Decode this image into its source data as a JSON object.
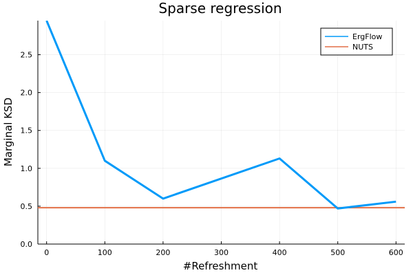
{
  "chart_data": {
    "type": "line",
    "title": "Sparse regression",
    "xlabel": "#Refreshment",
    "ylabel": "Marginal KSD",
    "xlim": [
      -15,
      615
    ],
    "ylim": [
      0,
      2.95
    ],
    "xticks": [
      0,
      100,
      200,
      300,
      400,
      500,
      600
    ],
    "xtick_labels": [
      "0",
      "100",
      "200",
      "300",
      "400",
      "500",
      "600"
    ],
    "yticks": [
      0,
      0.5,
      1,
      1.5,
      2,
      2.5
    ],
    "ytick_labels": [
      "0.0",
      "0.5",
      "1.0",
      "1.5",
      "2.0",
      "2.5"
    ],
    "grid": true,
    "legend_position": "top-right",
    "series": [
      {
        "name": "ErgFlow",
        "color": "#009af9",
        "x": [
          0,
          100,
          200,
          400,
          500,
          600
        ],
        "y": [
          2.95,
          1.1,
          0.6,
          1.13,
          0.47,
          0.56
        ]
      },
      {
        "name": "NUTS",
        "color": "#e26f46",
        "x": [
          -15,
          615
        ],
        "y": [
          0.48,
          0.48
        ]
      }
    ]
  }
}
